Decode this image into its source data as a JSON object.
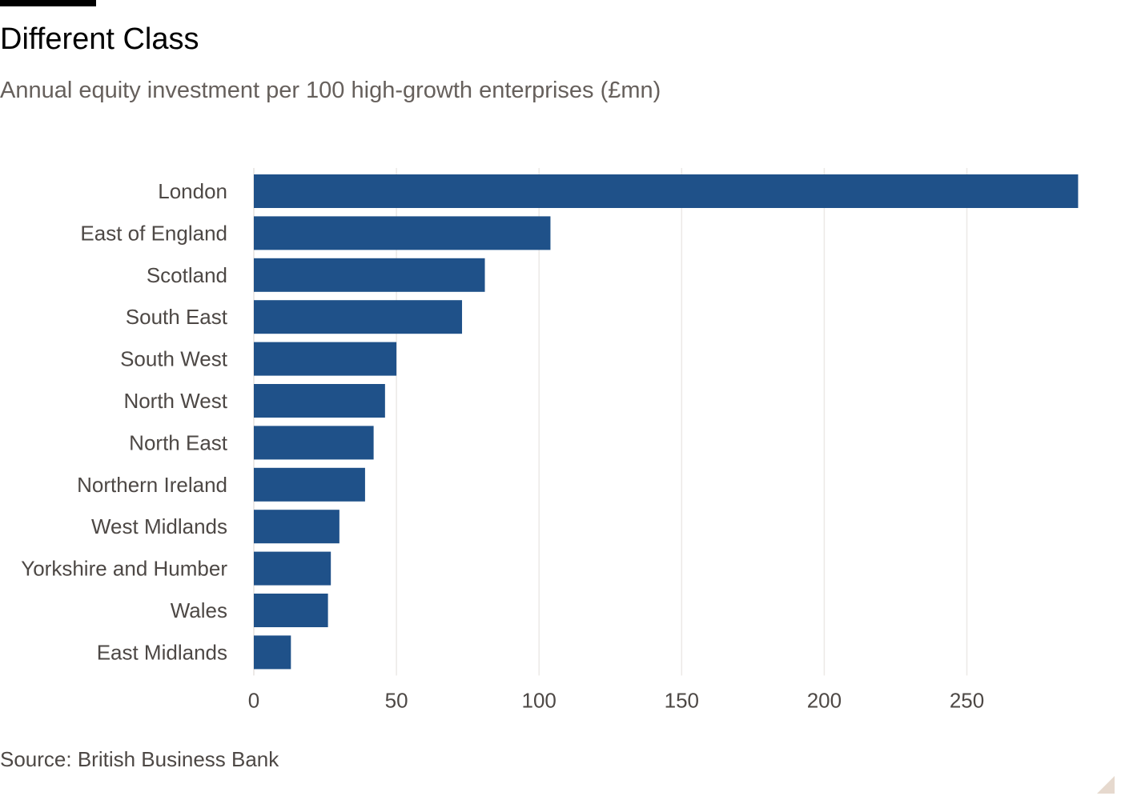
{
  "header": {
    "title": "Different Class",
    "subtitle": "Annual equity investment per 100 high-growth enterprises (£mn)"
  },
  "footer": {
    "source": "Source: British Business Bank"
  },
  "colors": {
    "bar": "#1f5189",
    "grid": "#ece9e6",
    "axis": "#e5e2df",
    "text": "#4d4845"
  },
  "chart_data": {
    "type": "bar",
    "orientation": "horizontal",
    "title": "Different Class",
    "subtitle": "Annual equity investment per 100 high-growth enterprises (£mn)",
    "categories": [
      "London",
      "East of England",
      "Scotland",
      "South East",
      "South West",
      "North West",
      "North East",
      "Northern Ireland",
      "West Midlands",
      "Yorkshire and Humber",
      "Wales",
      "East Midlands"
    ],
    "values": [
      289,
      104,
      81,
      73,
      50,
      46,
      42,
      39,
      30,
      27,
      26,
      13
    ],
    "xlim": [
      0,
      290
    ],
    "xticks": [
      0,
      50,
      100,
      150,
      200,
      250
    ],
    "grid": true,
    "legend": "none",
    "source": "Source: British Business Bank"
  }
}
